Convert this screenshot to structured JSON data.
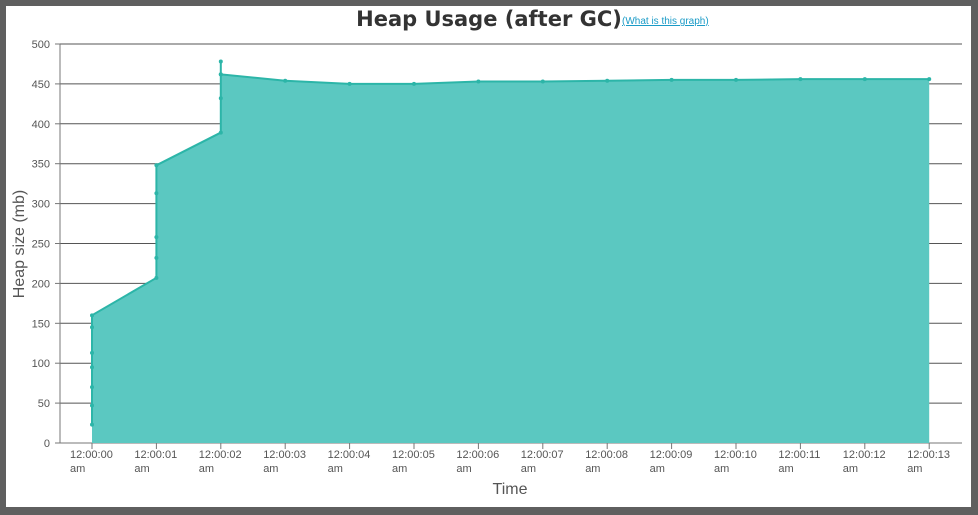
{
  "chart_data": {
    "type": "area",
    "title": "Heap Usage (after GC)",
    "help_link": "(What is this graph)",
    "xlabel": "Time",
    "ylabel": "Heap size (mb)",
    "ylim": [
      0,
      500
    ],
    "yticks": [
      0,
      50,
      100,
      150,
      200,
      250,
      300,
      350,
      400,
      450,
      500
    ],
    "xticks": [
      {
        "t": 0,
        "time": "12:00:00",
        "ampm": "am"
      },
      {
        "t": 1,
        "time": "12:00:01",
        "ampm": "am"
      },
      {
        "t": 2,
        "time": "12:00:02",
        "ampm": "am"
      },
      {
        "t": 3,
        "time": "12:00:03",
        "ampm": "am"
      },
      {
        "t": 4,
        "time": "12:00:04",
        "ampm": "am"
      },
      {
        "t": 5,
        "time": "12:00:05",
        "ampm": "am"
      },
      {
        "t": 6,
        "time": "12:00:06",
        "ampm": "am"
      },
      {
        "t": 7,
        "time": "12:00:07",
        "ampm": "am"
      },
      {
        "t": 8,
        "time": "12:00:08",
        "ampm": "am"
      },
      {
        "t": 9,
        "time": "12:00:09",
        "ampm": "am"
      },
      {
        "t": 10,
        "time": "12:00:10",
        "ampm": "am"
      },
      {
        "t": 11,
        "time": "12:00:11",
        "ampm": "am"
      },
      {
        "t": 12,
        "time": "12:00:12",
        "ampm": "am"
      },
      {
        "t": 13,
        "time": "12:00:13",
        "ampm": "am"
      }
    ],
    "series": [
      {
        "color": "#2cb5a8",
        "fill": "#5bc8c1",
        "points": [
          [
            0,
            23
          ],
          [
            0,
            47
          ],
          [
            0,
            70
          ],
          [
            0,
            95
          ],
          [
            0,
            113
          ],
          [
            0,
            145
          ],
          [
            0,
            160
          ],
          [
            1,
            207
          ],
          [
            1,
            232
          ],
          [
            1,
            258
          ],
          [
            1,
            313
          ],
          [
            1,
            348
          ],
          [
            2,
            389
          ],
          [
            2,
            432
          ],
          [
            2,
            462
          ],
          [
            2,
            478
          ],
          [
            2,
            462
          ],
          [
            3,
            454
          ],
          [
            4,
            450
          ],
          [
            5,
            450
          ],
          [
            6,
            453
          ],
          [
            7,
            453
          ],
          [
            8,
            454
          ],
          [
            9,
            455
          ],
          [
            10,
            455
          ],
          [
            11,
            456
          ],
          [
            12,
            456
          ],
          [
            13,
            456
          ]
        ]
      }
    ],
    "grid": true
  }
}
